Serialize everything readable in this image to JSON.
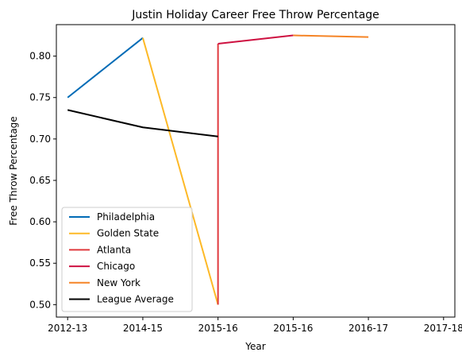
{
  "chart_data": {
    "type": "line",
    "title": "Justin Holiday Career Free Throw Percentage",
    "xlabel": "Year",
    "ylabel": "Free Throw Percentage",
    "x_tick_labels": [
      "2012-13",
      "2014-15",
      "2015-16",
      "2015-16",
      "2016-17",
      "2017-18"
    ],
    "xlim": [
      -0.15,
      5.15
    ],
    "ylim": [
      0.485,
      0.838
    ],
    "y_ticks": [
      0.5,
      0.55,
      0.6,
      0.65,
      0.7,
      0.75,
      0.8
    ],
    "y_tick_labels": [
      "0.50",
      "0.55",
      "0.60",
      "0.65",
      "0.70",
      "0.75",
      "0.80"
    ],
    "grid": false,
    "legend_position": "lower-left",
    "series": [
      {
        "name": "Philadelphia",
        "color": "#006bb6",
        "x": [
          0,
          1
        ],
        "y": [
          0.75,
          0.822
        ]
      },
      {
        "name": "Golden State",
        "color": "#fdb927",
        "x": [
          1,
          2
        ],
        "y": [
          0.822,
          0.5
        ]
      },
      {
        "name": "Atlanta",
        "color": "#e03a3e",
        "x": [
          2,
          2
        ],
        "y": [
          0.5,
          0.815
        ]
      },
      {
        "name": "Chicago",
        "color": "#ce1141",
        "x": [
          2,
          3
        ],
        "y": [
          0.815,
          0.825
        ]
      },
      {
        "name": "New York",
        "color": "#f58426",
        "x": [
          3,
          4
        ],
        "y": [
          0.825,
          0.823
        ]
      },
      {
        "name": "League Average",
        "color": "#000000",
        "x": [
          0,
          1,
          2
        ],
        "y": [
          0.735,
          0.714,
          0.703
        ]
      }
    ]
  }
}
